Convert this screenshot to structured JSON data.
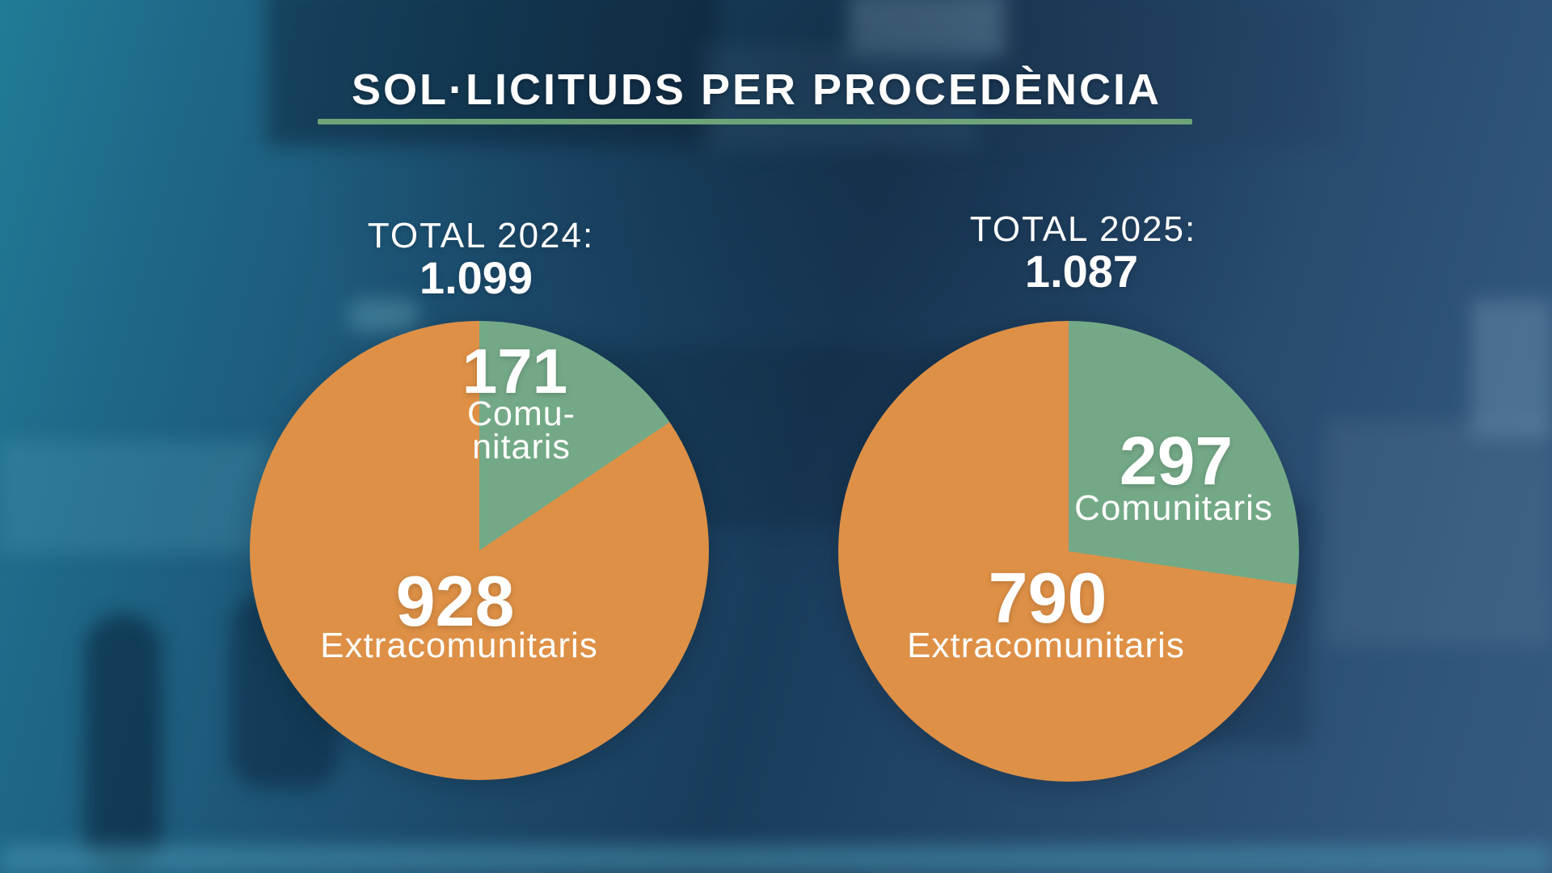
{
  "title": "SOL·LICITUDS PER PROCEDÈNCIA",
  "colors": {
    "comunitaris_green": "#74a987",
    "extracomunitaris_orange": "#de9046",
    "title_underline_green": "#6da578",
    "text": "#ffffff"
  },
  "chart_data": [
    {
      "type": "pie",
      "title": "TOTAL 2024:",
      "total": 1099,
      "total_display": "1.099",
      "start_angle_deg": 0,
      "direction": "clockwise",
      "slices": [
        {
          "label": "Comunitaris",
          "label_lines": [
            "Comu-",
            "nitaris"
          ],
          "value": 171,
          "color": "#74a987"
        },
        {
          "label": "Extracomunitaris",
          "value": 928,
          "color": "#de9046"
        }
      ]
    },
    {
      "type": "pie",
      "title": "TOTAL 2025:",
      "total": 1087,
      "total_display": "1.087",
      "start_angle_deg": 0,
      "direction": "clockwise",
      "slices": [
        {
          "label": "Comunitaris",
          "label_lines": [
            "Comunitaris"
          ],
          "value": 297,
          "color": "#74a987"
        },
        {
          "label": "Extracomunitaris",
          "value": 790,
          "color": "#de9046"
        }
      ]
    }
  ]
}
